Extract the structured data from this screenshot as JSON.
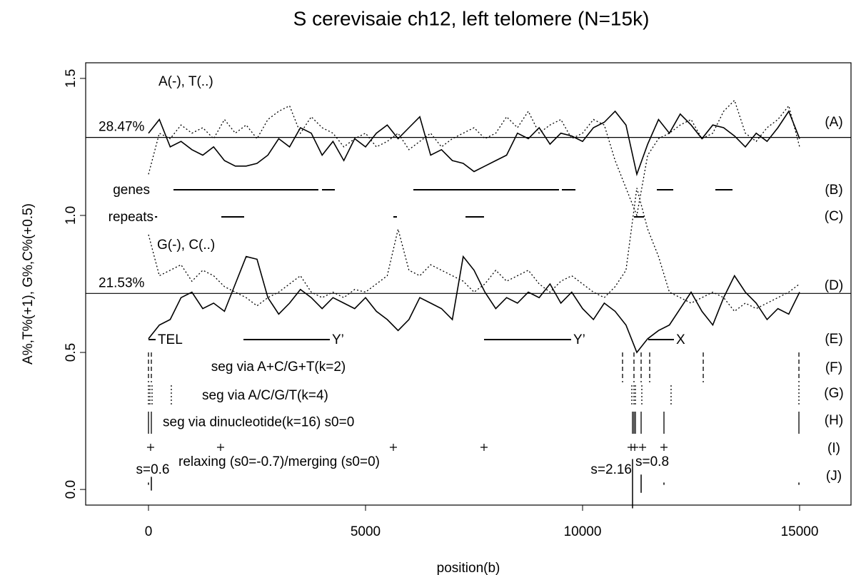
{
  "chart_data": {
    "type": "line",
    "title": "S cerevisaie ch12, left telomere (N=15k)",
    "xlabel": "position(b)",
    "ylabel": "A%,T%(+1), G%,C%(+0.5)",
    "xlim": [
      -1447,
      16184
    ],
    "ylim": [
      -0.057,
      1.557
    ],
    "xticks": [
      0,
      5000,
      10000,
      15000
    ],
    "yticks": [
      {
        "value": 0,
        "label": "0.0"
      },
      0.5,
      {
        "value": 1,
        "label": "1.0"
      },
      {
        "value": 1.5,
        "label": "1.5"
      }
    ],
    "x": [
      0,
      250,
      500,
      750,
      1000,
      1250,
      1500,
      1750,
      2000,
      2250,
      2500,
      2750,
      3000,
      3250,
      3500,
      3750,
      4000,
      4250,
      4500,
      4750,
      5000,
      5250,
      5500,
      5750,
      6000,
      6250,
      6500,
      6750,
      7000,
      7250,
      7500,
      7750,
      8000,
      8250,
      8500,
      8750,
      9000,
      9250,
      9500,
      9750,
      10000,
      10250,
      10500,
      10750,
      11000,
      11250,
      11500,
      11750,
      12000,
      12250,
      12500,
      12750,
      13000,
      13250,
      13500,
      13750,
      14000,
      14250,
      14500,
      14750,
      15000
    ],
    "series": [
      {
        "color": "#000000",
        "line_style": "solid",
        "values": [
          1.3,
          1.35,
          1.25,
          1.27,
          1.24,
          1.22,
          1.25,
          1.2,
          1.18,
          1.18,
          1.19,
          1.22,
          1.28,
          1.25,
          1.32,
          1.3,
          1.22,
          1.27,
          1.2,
          1.28,
          1.25,
          1.3,
          1.33,
          1.28,
          1.32,
          1.36,
          1.22,
          1.24,
          1.2,
          1.19,
          1.16,
          1.18,
          1.2,
          1.22,
          1.3,
          1.28,
          1.32,
          1.26,
          1.3,
          1.29,
          1.27,
          1.32,
          1.34,
          1.38,
          1.33,
          1.15,
          1.26,
          1.35,
          1.3,
          1.37,
          1.33,
          1.28,
          1.33,
          1.32,
          1.29,
          1.25,
          1.3,
          1.27,
          1.32,
          1.38,
          1.28
        ]
      },
      {
        "color": "#000000",
        "line_style": "dotted",
        "values": [
          1.15,
          1.3,
          1.28,
          1.33,
          1.3,
          1.32,
          1.28,
          1.35,
          1.3,
          1.33,
          1.28,
          1.35,
          1.38,
          1.4,
          1.3,
          1.36,
          1.32,
          1.3,
          1.25,
          1.28,
          1.3,
          1.25,
          1.27,
          1.3,
          1.24,
          1.27,
          1.3,
          1.25,
          1.28,
          1.3,
          1.32,
          1.28,
          1.3,
          1.36,
          1.32,
          1.38,
          1.3,
          1.33,
          1.35,
          1.28,
          1.3,
          1.35,
          1.33,
          1.2,
          1.1,
          1.0,
          1.22,
          1.28,
          1.3,
          1.33,
          1.35,
          1.28,
          1.3,
          1.38,
          1.42,
          1.3,
          1.27,
          1.32,
          1.35,
          1.4,
          1.25
        ]
      },
      {
        "color": "#000000",
        "line_style": "solid",
        "values": [
          0.55,
          0.6,
          0.62,
          0.7,
          0.72,
          0.66,
          0.68,
          0.65,
          0.75,
          0.85,
          0.84,
          0.7,
          0.64,
          0.68,
          0.73,
          0.7,
          0.66,
          0.7,
          0.68,
          0.66,
          0.7,
          0.65,
          0.62,
          0.58,
          0.62,
          0.7,
          0.68,
          0.66,
          0.62,
          0.85,
          0.8,
          0.72,
          0.66,
          0.7,
          0.68,
          0.72,
          0.7,
          0.75,
          0.68,
          0.72,
          0.66,
          0.62,
          0.68,
          0.65,
          0.6,
          0.5,
          0.55,
          0.58,
          0.6,
          0.66,
          0.72,
          0.65,
          0.6,
          0.7,
          0.78,
          0.72,
          0.68,
          0.62,
          0.66,
          0.64,
          0.72
        ]
      },
      {
        "color": "#000000",
        "line_style": "dotted",
        "values": [
          0.93,
          0.78,
          0.8,
          0.82,
          0.76,
          0.8,
          0.78,
          0.74,
          0.72,
          0.7,
          0.67,
          0.7,
          0.72,
          0.75,
          0.78,
          0.72,
          0.7,
          0.72,
          0.7,
          0.73,
          0.72,
          0.75,
          0.78,
          0.95,
          0.8,
          0.78,
          0.82,
          0.8,
          0.78,
          0.76,
          0.72,
          0.75,
          0.8,
          0.76,
          0.78,
          0.8,
          0.75,
          0.72,
          0.76,
          0.78,
          0.75,
          0.72,
          0.7,
          0.74,
          0.8,
          1.1,
          0.95,
          0.85,
          0.72,
          0.7,
          0.68,
          0.7,
          0.72,
          0.7,
          0.65,
          0.68,
          0.66,
          0.68,
          0.7,
          0.72,
          0.75
        ]
      }
    ],
    "series_labels": [
      "A(-), T(..)",
      "G(-), C(..)"
    ],
    "reference_lines": [
      {
        "value": 1.2847,
        "label": "28.47%"
      },
      {
        "value": 0.7153,
        "label": "21.53%"
      }
    ],
    "tracks": [
      {
        "label": "genes",
        "kind": "segments",
        "segments": [
          [
            576,
            3914
          ],
          [
            3997,
            4293
          ],
          [
            6102,
            9457
          ],
          [
            9523,
            9836
          ],
          [
            11711,
            12089
          ],
          [
            13059,
            13454
          ]
        ]
      },
      {
        "label": "repeats",
        "kind": "segments",
        "segments": [
          [
            150,
            200
          ],
          [
            1678,
            2204
          ],
          [
            5641,
            5724
          ],
          [
            7303,
            7730
          ],
          [
            11184,
            11414
          ]
        ]
      },
      {
        "kind": "segments",
        "segments": [
          [
            0,
            164
          ],
          [
            2188,
            4178
          ],
          [
            7730,
            9737
          ],
          [
            11513,
            12105
          ]
        ],
        "segment_labels": [
          "TEL",
          "Y’",
          "Y’",
          "X"
        ]
      },
      {
        "label": "seg via A+C/G+T(k=2)",
        "kind": "cuts",
        "line_style": "dashed",
        "positions": [
          0,
          66,
          10921,
          11184,
          11349,
          11546,
          12780,
          14984
        ]
      },
      {
        "label": "seg via A/C/G/T(k=4)",
        "kind": "cuts",
        "line_style": "dotted",
        "positions": [
          0,
          33,
          82,
          526,
          11135,
          11184,
          11217,
          11365,
          12039,
          14984
        ]
      },
      {
        "label": "seg via dinucleotide(k=16) s0=0",
        "kind": "cuts",
        "line_style": "solid",
        "positions": [
          0,
          66,
          11151,
          11184,
          11217,
          11349,
          11875,
          14984
        ]
      },
      {
        "label": "relaxing (s0=-0.7)/merging (s0=0)",
        "kind": "plus",
        "positions": [
          49,
          1661,
          5641,
          7730,
          11118,
          11201,
          11382,
          11875
        ]
      },
      {
        "kind": "scores",
        "items": [
          {
            "position": 66,
            "s": 0.6,
            "label": "s=0.6"
          },
          {
            "position": 11151,
            "s": 2.16,
            "label": "s=2.16"
          },
          {
            "position": 11349,
            "s": 0.8,
            "label": "s=0.8"
          },
          {
            "position": 0,
            "s": 0.1
          },
          {
            "position": 11875,
            "s": 0.1
          },
          {
            "position": 14984,
            "s": 0.1
          }
        ]
      }
    ],
    "row_tags": [
      "(A)",
      "(B)",
      "(C)",
      "(D)",
      "(E)",
      "(F)",
      "(G)",
      "(H)",
      "(I)",
      "(J)"
    ]
  }
}
